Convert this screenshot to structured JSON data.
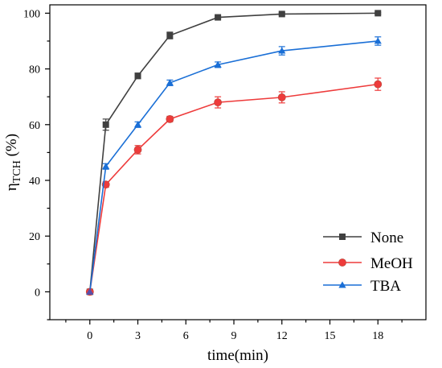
{
  "chart_data": {
    "type": "line",
    "title": "",
    "xlabel": "time(min)",
    "ylabel_main": "η",
    "ylabel_sub": "TCH",
    "ylabel_unit": " (%)",
    "xlim": [
      -2.5,
      21
    ],
    "ylim": [
      -10,
      103
    ],
    "x_ticks": [
      0,
      3,
      6,
      9,
      12,
      15,
      18
    ],
    "y_ticks": [
      0,
      20,
      40,
      60,
      80,
      100
    ],
    "legend_position": "bottom-right",
    "x": [
      0,
      1,
      3,
      5,
      8,
      12,
      18
    ],
    "series": [
      {
        "name": "None",
        "color": "#404040",
        "marker": "square",
        "values": [
          0,
          60,
          77.5,
          92,
          98.5,
          99.7,
          100
        ],
        "errors": [
          0,
          2,
          1,
          1.2,
          0.5,
          0.4,
          0.3
        ]
      },
      {
        "name": "MeOH",
        "color": "#ee3b3b",
        "marker": "circle",
        "values": [
          0,
          38.5,
          51,
          62,
          68,
          69.8,
          74.5
        ],
        "errors": [
          0,
          1,
          1.5,
          1,
          2,
          2,
          2.2
        ]
      },
      {
        "name": "TBA",
        "color": "#1a6fd6",
        "marker": "triangle",
        "values": [
          0,
          45,
          60,
          75,
          81.5,
          86.5,
          90
        ],
        "errors": [
          0,
          1,
          1,
          1,
          1,
          1.5,
          1.5
        ]
      }
    ]
  }
}
